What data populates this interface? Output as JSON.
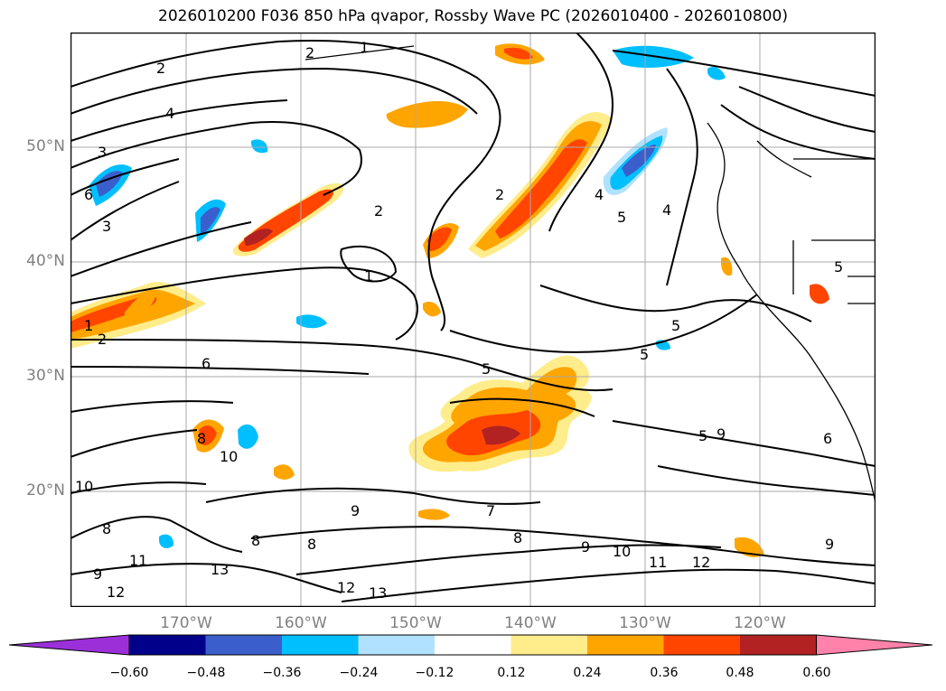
{
  "title": "2026010200 F036 850 hPa qvapor, Rossby Wave PC (2026010400 - 2026010800)",
  "axes": {
    "lat_labels": [
      "50°N",
      "40°N",
      "30°N",
      "20°N"
    ],
    "lon_labels": [
      "170°W",
      "160°W",
      "150°W",
      "140°W",
      "130°W",
      "120°W"
    ]
  },
  "colorbar": {
    "labels": [
      "−0.60",
      "−0.48",
      "−0.36",
      "−0.24",
      "−0.12",
      "0.12",
      "0.24",
      "0.36",
      "0.48",
      "0.60"
    ],
    "colors": [
      "#9b30d9",
      "#00008b",
      "#3a5fcd",
      "#00bfff",
      "#b0e2ff",
      "#ffffff",
      "#ffec8b",
      "#ffa500",
      "#ff4500",
      "#b22222",
      "#ff82ab"
    ]
  },
  "contour_labels": [
    "1",
    "2",
    "2",
    "2",
    "1",
    "2",
    "4",
    "3",
    "6",
    "3",
    "4",
    "5",
    "4",
    "5",
    "5",
    "5",
    "5",
    "1",
    "2",
    "6",
    "5",
    "8",
    "10",
    "10",
    "9",
    "7",
    "8",
    "9",
    "9",
    "10",
    "11",
    "12",
    "9",
    "6",
    "8",
    "8",
    "11",
    "12",
    "13",
    "12",
    "13",
    "9",
    "8"
  ]
}
